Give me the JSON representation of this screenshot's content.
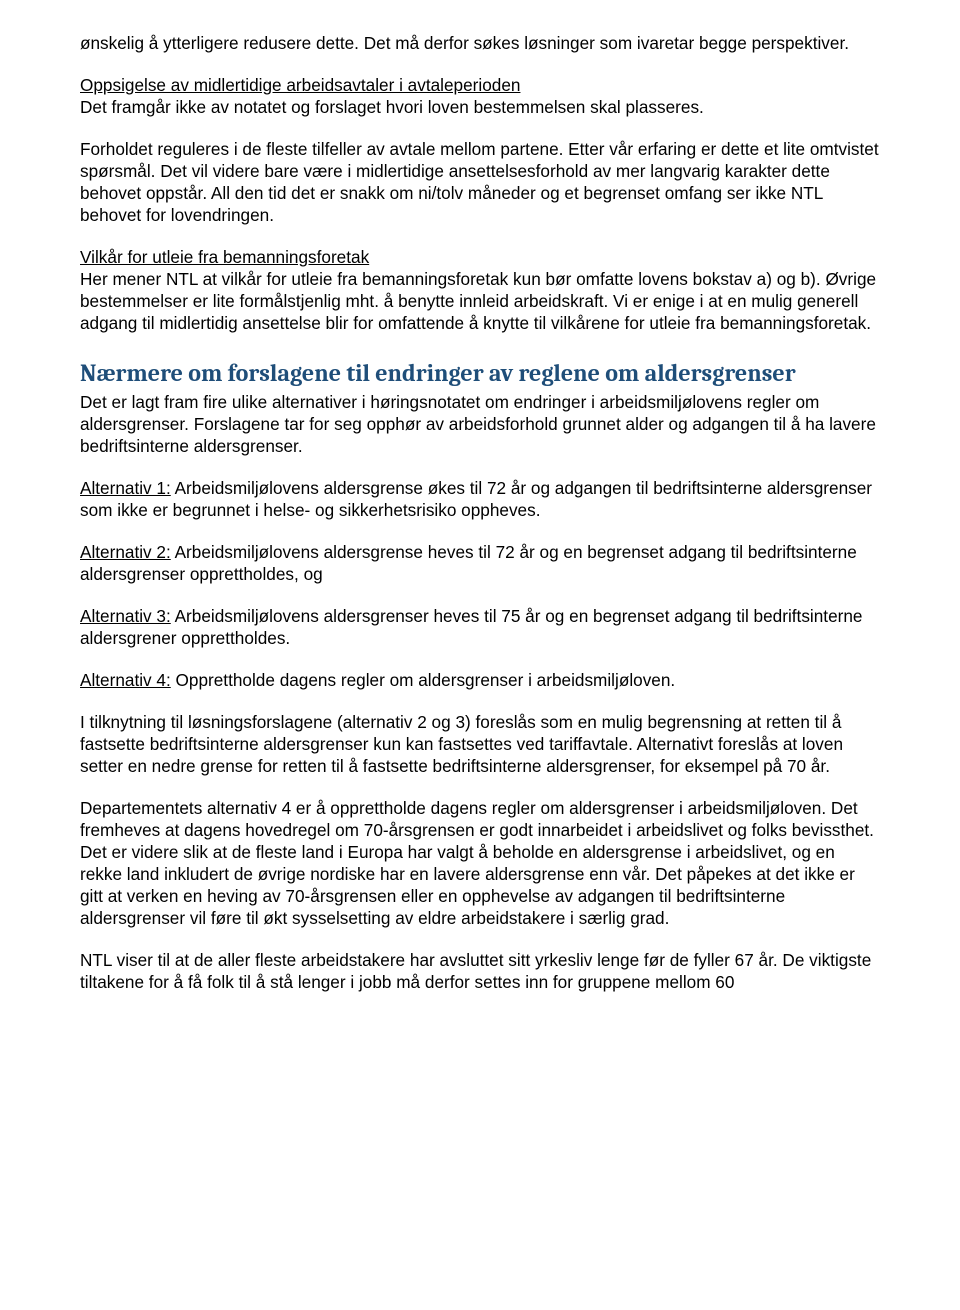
{
  "p1": "ønskelig å ytterligere redusere dette. Det må derfor søkes løsninger som ivaretar begge perspektiver.",
  "p2_u": "Oppsigelse av midlertidige arbeidsavtaler i avtaleperioden",
  "p2_rest": "Det framgår ikke av notatet og forslaget hvori loven bestemmelsen skal plasseres.",
  "p3": "Forholdet reguleres i de fleste tilfeller av avtale mellom partene. Etter vår erfaring er dette et lite omtvistet spørsmål. Det vil videre bare være i midlertidige ansettelsesforhold av mer langvarig karakter dette behovet oppstår. All den tid det er snakk om ni/tolv måneder og et begrenset omfang ser ikke NTL behovet for lovendringen.",
  "p4_u": "Vilkår for utleie fra bemanningsforetak",
  "p4_rest": "Her mener NTL at vilkår for utleie fra bemanningsforetak kun bør omfatte lovens bokstav a) og b). Øvrige bestemmelser er lite formålstjenlig mht. å benytte innleid arbeidskraft. Vi er enige i at en mulig generell adgang til midlertidig ansettelse blir for omfattende å knytte til vilkårene for utleie fra bemanningsforetak.",
  "heading": "Nærmere om forslagene til endringer av reglene om aldersgrenser",
  "p5": "Det er lagt fram fire ulike alternativer i høringsnotatet om endringer i arbeidsmiljølovens regler om aldersgrenser. Forslagene tar for seg opphør av arbeidsforhold grunnet alder og adgangen til å ha lavere bedriftsinterne aldersgrenser.",
  "alt1_label": "Alternativ 1:",
  "alt1_text": " Arbeidsmiljølovens aldersgrense økes til 72 år og adgangen til bedriftsinterne aldersgrenser som ikke er begrunnet i helse- og sikkerhetsrisiko oppheves.",
  "alt2_label": "Alternativ 2:",
  "alt2_text": " Arbeidsmiljølovens aldersgrense heves til 72 år og en begrenset adgang til bedriftsinterne aldersgrenser opprettholdes, og",
  "alt3_label": "Alternativ 3:",
  "alt3_text": " Arbeidsmiljølovens aldersgrenser heves til 75 år og en begrenset adgang til bedriftsinterne aldersgrener opprettholdes.",
  "alt4_label": "Alternativ 4:",
  "alt4_text": " Opprettholde dagens regler om aldersgrenser i arbeidsmiljøloven.",
  "p6": "I tilknytning til løsningsforslagene (alternativ 2 og 3) foreslås som en mulig begrensning at retten til å fastsette bedriftsinterne aldersgrenser kun kan fastsettes ved tariffavtale. Alternativt foreslås at loven setter en nedre grense for retten til å fastsette bedriftsinterne aldersgrenser, for eksempel på 70 år.",
  "p7": "Departementets alternativ 4 er å opprettholde dagens regler om aldersgrenser i arbeidsmiljøloven. Det fremheves at dagens hovedregel om 70-årsgrensen er godt innarbeidet i arbeidslivet og folks bevissthet. Det er videre slik at de fleste land i Europa har valgt å beholde en aldersgrense i arbeidslivet, og en rekke land inkludert de øvrige nordiske har en lavere aldersgrense enn vår. Det påpekes at det ikke er gitt at verken en heving av 70-årsgrensen eller en opphevelse av adgangen til bedriftsinterne aldersgrenser vil føre til økt sysselsetting av eldre arbeidstakere i særlig grad.",
  "p8": "NTL viser til at de aller fleste arbeidstakere har avsluttet sitt yrkesliv lenge før de fyller 67 år. De viktigste tiltakene for å få folk til å stå lenger i jobb må derfor settes inn for gruppene mellom 60"
}
